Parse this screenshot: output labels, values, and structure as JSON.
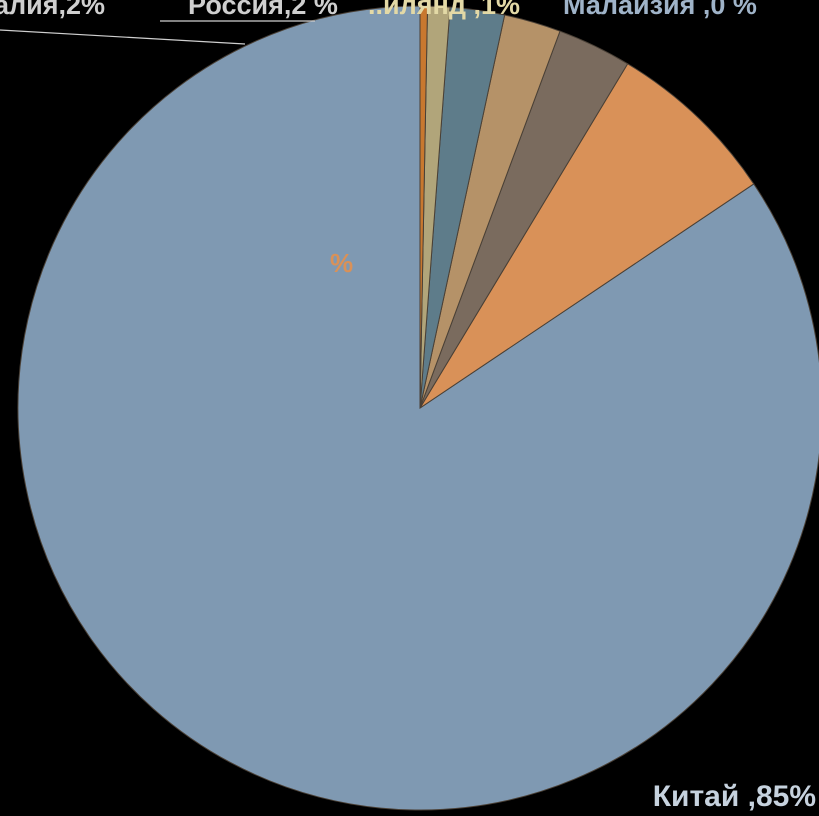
{
  "chart_data": {
    "type": "pie",
    "title": "",
    "start": "top",
    "direction": "counterclockwise",
    "slices": [
      {
        "label": "Китай ,85%",
        "value": 85,
        "color": "#7F99B2"
      },
      {
        "label": "",
        "value": 7.0,
        "color": "#D99158"
      },
      {
        "label": "%",
        "value": 3.0,
        "color": "#7A6B5E"
      },
      {
        "label": "Россия,2 %",
        "value": 2.3,
        "color": "#B59268"
      },
      {
        "label": "алия,2%",
        "value": 2.2,
        "color": "#5E7C8A"
      },
      {
        "label": "..илянд ,1%",
        "value": 0.9,
        "color": "#B1A57A"
      },
      {
        "label": "Малайзия ,0 %",
        "value": 0.3,
        "color": "#C8782F"
      }
    ]
  }
}
